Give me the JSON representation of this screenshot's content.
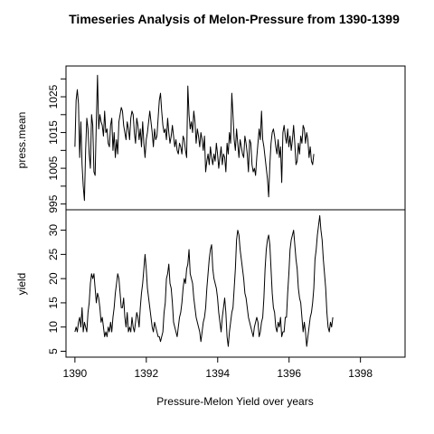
{
  "chart_data": {
    "type": "line",
    "title": "Timeseries Analysis of Melon-Pressure from 1390-1399",
    "xlabel": "Pressure-Melon Yield over years",
    "xlim": [
      1389.75,
      1399.25
    ],
    "xticks": [
      1390,
      1392,
      1394,
      1396,
      1398
    ],
    "panels": [
      {
        "ylabel": "press.mean",
        "ylim": [
          995,
          1032
        ],
        "yticks": [
          995,
          1005,
          1015,
          1025
        ],
        "minor_yticks": [
          1000,
          1010,
          1020,
          1030
        ],
        "series": [
          {
            "x_start": 1390,
            "x_step": 0.0333,
            "values": [
              1011,
              1024,
              1027,
              1023,
              1008,
              1018,
              1006,
              1000,
              996,
              1010,
              1019,
              1016,
              1009,
              1005,
              1020,
              1017,
              1004,
              1003,
              1018,
              1031,
              1016,
              1020,
              1018,
              1017,
              1014,
              1021,
              1015,
              1016,
              1012,
              1011,
              1017,
              1019,
              1010,
              1015,
              1008,
              1013,
              1009,
              1018,
              1020,
              1022,
              1021,
              1017,
              1015,
              1013,
              1018,
              1016,
              1013,
              1019,
              1021,
              1020,
              1015,
              1012,
              1019,
              1017,
              1013,
              1016,
              1011,
              1018,
              1012,
              1008,
              1013,
              1015,
              1018,
              1021,
              1018,
              1015,
              1011,
              1016,
              1013,
              1014,
              1019,
              1024,
              1026,
              1021,
              1017,
              1015,
              1016,
              1013,
              1019,
              1015,
              1012,
              1014,
              1017,
              1014,
              1011,
              1013,
              1010,
              1009,
              1012,
              1011,
              1009,
              1014,
              1013,
              1010,
              1008,
              1028,
              1020,
              1016,
              1018,
              1015,
              1021,
              1018,
              1012,
              1016,
              1014,
              1011,
              1015,
              1013,
              1010,
              1014,
              1004,
              1007,
              1009,
              1006,
              1011,
              1008,
              1006,
              1009,
              1007,
              1012,
              1009,
              1005,
              1008,
              1011,
              1006,
              1009,
              1008,
              1004,
              1012,
              1009,
              1015,
              1012,
              1026,
              1020,
              1013,
              1010,
              1016,
              1012,
              1008,
              1013,
              1011,
              1009,
              1008,
              1014,
              1012,
              1009,
              1004,
              1013,
              1012,
              1006,
              1004,
              1005,
              1003,
              1008,
              1012,
              1016,
              1013,
              1021,
              1013,
              1011,
              1008,
              1005,
              1002,
              997,
              1006,
              1012,
              1015,
              1016,
              1014,
              1011,
              1009,
              1013,
              1008,
              1011,
              1001,
              1015,
              1017,
              1014,
              1012,
              1016,
              1011,
              1014,
              1010,
              1013,
              1017,
              1012,
              1006,
              1007,
              1012,
              1009,
              1014,
              1012,
              1017,
              1016,
              1012,
              1015,
              1013,
              1008,
              1011,
              1007,
              1006,
              1009
            ]
          }
        ]
      },
      {
        "ylabel": "yield",
        "ylim": [
          5,
          33
        ],
        "yticks": [
          5,
          10,
          15,
          20,
          25,
          30
        ],
        "series": [
          {
            "x_start": 1390,
            "x_step": 0.0333,
            "values": [
              9,
              10,
              9,
              11,
              12,
              10,
              14,
              9,
              11,
              10,
              9,
              13,
              15,
              19,
              21,
              20,
              21,
              18,
              15,
              17,
              16,
              14,
              11,
              12,
              10,
              8,
              9,
              8,
              10,
              9,
              11,
              9,
              12,
              14,
              17,
              19,
              21,
              20,
              17,
              14,
              14,
              16,
              12,
              10,
              13,
              9,
              10,
              9,
              12,
              10,
              9,
              11,
              13,
              12,
              10,
              14,
              17,
              19,
              22,
              25,
              22,
              18,
              16,
              14,
              12,
              10,
              9,
              11,
              10,
              9,
              8,
              8,
              7,
              8,
              9,
              13,
              15,
              20,
              21,
              23,
              19,
              18,
              15,
              11,
              10,
              9,
              8,
              10,
              12,
              13,
              15,
              18,
              20,
              19,
              22,
              23,
              26,
              21,
              20,
              19,
              16,
              14,
              12,
              11,
              10,
              9,
              7,
              9,
              11,
              12,
              14,
              18,
              21,
              24,
              26,
              27,
              22,
              20,
              19,
              18,
              16,
              13,
              11,
              9,
              12,
              14,
              16,
              13,
              8,
              6,
              9,
              11,
              13,
              14,
              18,
              22,
              28,
              30,
              29,
              26,
              24,
              22,
              20,
              17,
              16,
              14,
              12,
              11,
              10,
              9,
              8,
              10,
              11,
              12,
              11,
              8,
              9,
              11,
              12,
              16,
              22,
              26,
              28,
              29,
              27,
              22,
              17,
              14,
              13,
              10,
              9,
              11,
              10,
              12,
              8,
              9,
              9,
              12,
              12,
              17,
              21,
              26,
              28,
              29,
              30,
              27,
              24,
              22,
              18,
              16,
              15,
              12,
              9,
              11,
              9,
              6,
              8,
              10,
              12,
              13,
              15,
              18,
              24,
              26,
              29,
              31,
              33,
              30,
              28,
              24,
              21,
              18,
              13,
              10,
              9,
              11,
              10,
              12
            ]
          }
        ]
      }
    ],
    "grid": false,
    "legend": "none"
  }
}
